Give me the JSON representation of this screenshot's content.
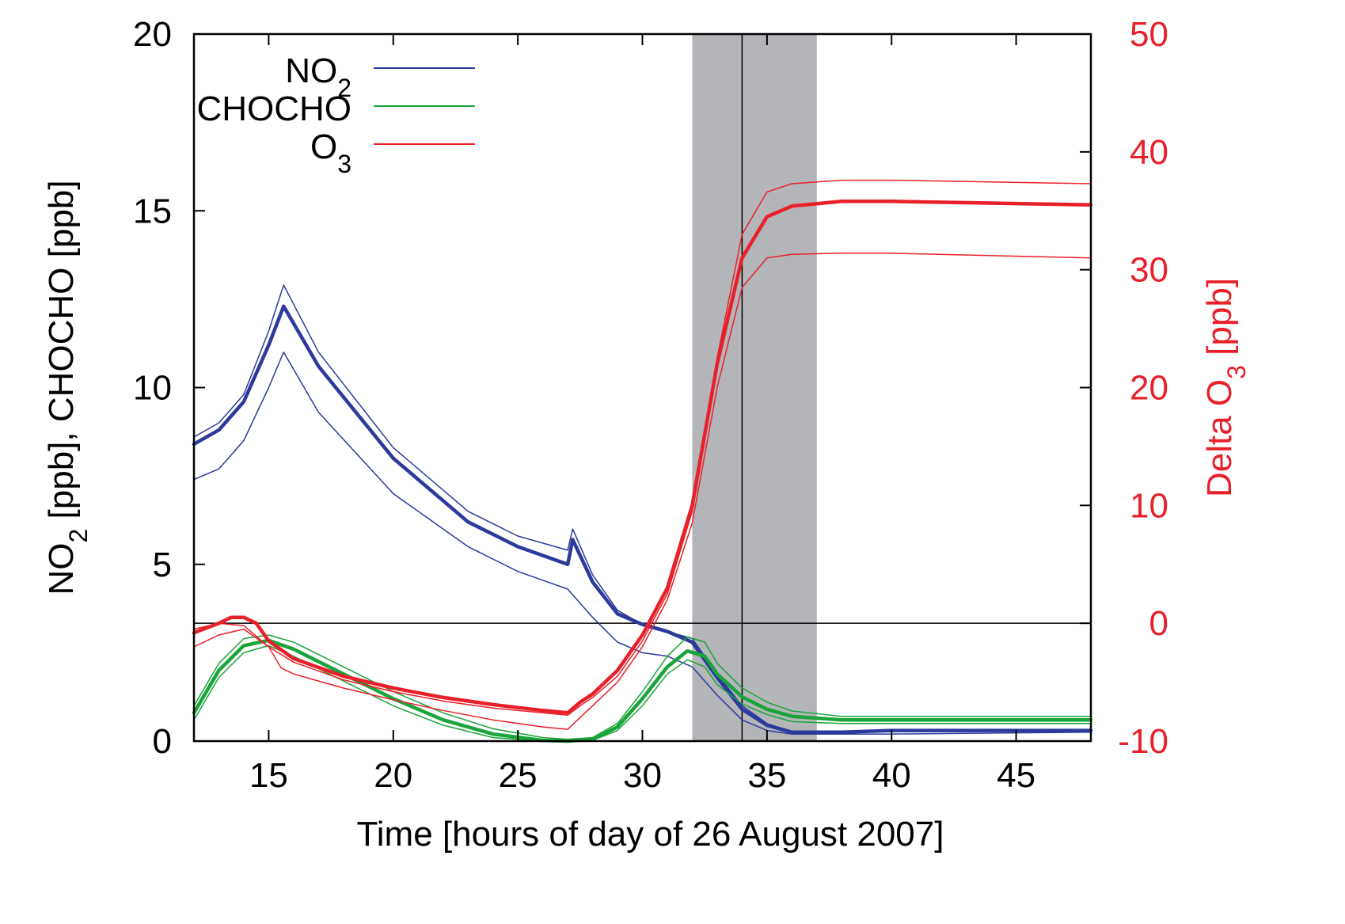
{
  "chart_data": {
    "type": "line",
    "xlabel": "Time [hours of day of 26 August 2007]",
    "ylabel_left": {
      "main": "NO",
      "sub": "2",
      "rest": " [ppb], CHOCHO [ppb]"
    },
    "ylabel_right": {
      "main": "Delta O",
      "sub": "3",
      "rest": " [ppb]"
    },
    "xlim": [
      12,
      48
    ],
    "ylim_left": [
      0,
      20
    ],
    "ylim_right": [
      -10,
      50
    ],
    "x_ticks": [
      15,
      20,
      25,
      30,
      35,
      40,
      45
    ],
    "y_left_ticks": [
      0,
      5,
      10,
      15,
      20
    ],
    "y_right_ticks": [
      -10,
      0,
      10,
      20,
      30,
      40,
      50
    ],
    "legend": [
      {
        "main": "NO",
        "sub": "2",
        "color": "#2b3a9b"
      },
      {
        "main": "CHOCHO",
        "sub": "",
        "color": "#1aa43a"
      },
      {
        "main": "O",
        "sub": "3",
        "color": "#e8202a"
      }
    ],
    "shaded_region_x": [
      32,
      37
    ],
    "vertical_line_x": 34,
    "horizontal_zero_right": 0,
    "series": [
      {
        "name": "NO2",
        "axis": "left",
        "color": "#2b3a9b",
        "width": 4.5,
        "x": [
          12,
          13,
          14,
          15,
          15.6,
          17,
          20,
          23,
          25,
          27,
          27.2,
          28,
          29,
          30,
          31,
          32,
          33,
          34,
          35,
          36,
          38,
          40,
          48
        ],
        "y": [
          8.4,
          8.8,
          9.6,
          11.2,
          12.3,
          10.6,
          8.0,
          6.2,
          5.5,
          5.0,
          5.7,
          4.5,
          3.6,
          3.3,
          3.1,
          2.8,
          1.8,
          0.9,
          0.45,
          0.25,
          0.25,
          0.3,
          0.3
        ]
      },
      {
        "name": "NO2 upper",
        "axis": "left",
        "color": "#2b3a9b",
        "width": 1.5,
        "x": [
          12,
          13,
          14,
          15,
          15.6,
          17,
          20,
          23,
          25,
          27,
          27.2,
          28,
          29,
          30,
          31,
          32,
          33,
          34,
          35,
          36,
          40,
          48
        ],
        "y": [
          8.6,
          9.0,
          9.8,
          11.6,
          12.9,
          11.0,
          8.3,
          6.5,
          5.8,
          5.4,
          6.0,
          4.7,
          3.7,
          3.3,
          3.1,
          2.9,
          1.9,
          1.0,
          0.5,
          0.25,
          0.3,
          0.3
        ]
      },
      {
        "name": "NO2 lower",
        "axis": "left",
        "color": "#2b3a9b",
        "width": 1.5,
        "x": [
          12,
          13,
          14,
          15,
          15.6,
          17,
          20,
          23,
          25,
          27,
          27.5,
          28,
          29,
          30,
          31,
          32,
          33,
          34,
          35,
          36,
          40,
          48
        ],
        "y": [
          7.4,
          7.7,
          8.5,
          10.0,
          11.0,
          9.3,
          7.0,
          5.5,
          4.8,
          4.3,
          3.9,
          3.5,
          2.8,
          2.5,
          2.4,
          2.1,
          1.3,
          0.6,
          0.3,
          0.2,
          0.2,
          0.25
        ]
      },
      {
        "name": "CHOCHO",
        "axis": "left",
        "color": "#1aa43a",
        "width": 4.5,
        "x": [
          12,
          13,
          14,
          15,
          16,
          18,
          20,
          22,
          24,
          26,
          27,
          28,
          29,
          30,
          31,
          31.8,
          32.5,
          33,
          34,
          35,
          36,
          38,
          40,
          48
        ],
        "y": [
          0.8,
          2.0,
          2.7,
          2.85,
          2.6,
          1.9,
          1.2,
          0.6,
          0.2,
          0.02,
          0.0,
          0.05,
          0.4,
          1.2,
          2.1,
          2.55,
          2.4,
          1.9,
          1.25,
          0.9,
          0.7,
          0.6,
          0.6,
          0.6
        ]
      },
      {
        "name": "CHOCHO upper",
        "axis": "left",
        "color": "#1aa43a",
        "width": 1.5,
        "x": [
          12,
          13,
          14,
          15,
          16,
          18,
          20,
          22,
          24,
          26,
          27,
          28,
          29,
          30,
          31,
          31.8,
          32.5,
          33,
          34,
          35,
          36,
          38,
          40,
          48
        ],
        "y": [
          1.0,
          2.2,
          2.9,
          3.0,
          2.8,
          2.1,
          1.4,
          0.8,
          0.35,
          0.1,
          0.05,
          0.1,
          0.5,
          1.4,
          2.4,
          2.95,
          2.8,
          2.2,
          1.5,
          1.1,
          0.85,
          0.7,
          0.7,
          0.7
        ]
      },
      {
        "name": "CHOCHO lower",
        "axis": "left",
        "color": "#1aa43a",
        "width": 1.5,
        "x": [
          12,
          13,
          14,
          15,
          16,
          18,
          20,
          22,
          24,
          26,
          27,
          28,
          29,
          30,
          31,
          31.8,
          32.5,
          33,
          34,
          35,
          36,
          38,
          40,
          48
        ],
        "y": [
          0.6,
          1.8,
          2.5,
          2.7,
          2.4,
          1.7,
          1.0,
          0.45,
          0.1,
          0.0,
          0.0,
          0.02,
          0.3,
          1.0,
          1.9,
          2.3,
          2.1,
          1.6,
          1.05,
          0.75,
          0.55,
          0.5,
          0.5,
          0.5
        ]
      },
      {
        "name": "O3",
        "axis": "right",
        "color": "#e8202a",
        "width": 4.5,
        "x": [
          12,
          13,
          13.5,
          14,
          14.5,
          15,
          16,
          18,
          20,
          22,
          24,
          26,
          27,
          27.5,
          28,
          29,
          30,
          31,
          32,
          33,
          34,
          35,
          36,
          38,
          40,
          48
        ],
        "y": [
          -0.8,
          0.0,
          0.5,
          0.5,
          0.0,
          -1.5,
          -3.0,
          -4.5,
          -5.5,
          -6.3,
          -6.9,
          -7.4,
          -7.6,
          -6.7,
          -6.0,
          -4.0,
          -1.0,
          3.0,
          10.0,
          22.0,
          31.0,
          34.5,
          35.4,
          35.8,
          35.8,
          35.5
        ]
      },
      {
        "name": "O3 upper",
        "axis": "right",
        "color": "#e8202a",
        "width": 1.5,
        "x": [
          12,
          13,
          14,
          15,
          16,
          18,
          20,
          22,
          24,
          26,
          27,
          27.5,
          28,
          29,
          30,
          31,
          32,
          33,
          34,
          35,
          36,
          38,
          40,
          48
        ],
        "y": [
          -0.5,
          0.0,
          -0.2,
          -2.0,
          -3.3,
          -4.8,
          -5.8,
          -6.6,
          -7.2,
          -7.6,
          -7.8,
          -7.0,
          -6.3,
          -4.5,
          -1.5,
          2.5,
          9.5,
          22.5,
          33.0,
          36.6,
          37.3,
          37.6,
          37.6,
          37.3
        ]
      },
      {
        "name": "O3 lower",
        "axis": "right",
        "color": "#e8202a",
        "width": 1.5,
        "x": [
          12,
          13,
          14,
          15,
          15.5,
          16,
          18,
          20,
          22,
          24,
          26,
          27,
          27.5,
          28,
          29,
          30,
          31,
          32,
          33,
          34,
          35,
          36,
          38,
          40,
          48
        ],
        "y": [
          -2.0,
          -1.0,
          -0.5,
          -2.0,
          -3.8,
          -4.3,
          -5.5,
          -6.5,
          -7.4,
          -8.2,
          -8.8,
          -9.0,
          -8.0,
          -7.0,
          -5.0,
          -2.0,
          2.0,
          8.5,
          20.0,
          28.5,
          31.0,
          31.3,
          31.4,
          31.4,
          31.0
        ]
      }
    ]
  }
}
